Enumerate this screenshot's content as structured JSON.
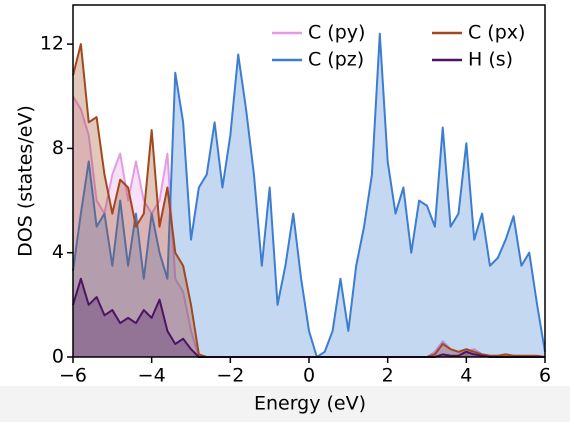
{
  "chart_data": {
    "type": "line",
    "xlabel": "Energy (eV)",
    "ylabel": "DOS (states/eV)",
    "x": [
      -6,
      -5.8,
      -5.6,
      -5.4,
      -5.2,
      -5,
      -4.8,
      -4.6,
      -4.4,
      -4.2,
      -4,
      -3.8,
      -3.6,
      -3.4,
      -3.2,
      -3,
      -2.8,
      -2.6,
      -2.4,
      -2.2,
      -2,
      -1.8,
      -1.6,
      -1.4,
      -1.2,
      -1,
      -0.8,
      -0.6,
      -0.4,
      -0.2,
      0,
      0.2,
      0.4,
      0.6,
      0.8,
      1,
      1.2,
      1.4,
      1.6,
      1.8,
      2,
      2.2,
      2.4,
      2.6,
      2.8,
      3,
      3.2,
      3.4,
      3.6,
      3.8,
      4,
      4.2,
      4.4,
      4.6,
      4.8,
      5,
      5.2,
      5.4,
      5.6,
      5.8,
      6
    ],
    "series": [
      {
        "name": "C (py)",
        "color": "#e39be6",
        "values": [
          10,
          9.5,
          8.5,
          6.0,
          5.5,
          7.0,
          7.8,
          6.0,
          7.5,
          6.0,
          5.5,
          6.0,
          7.8,
          3.0,
          2.5,
          1.0,
          0,
          0,
          0,
          0,
          0,
          0,
          0,
          0,
          0,
          0,
          0,
          0,
          0,
          0,
          0,
          0,
          0,
          0,
          0,
          0,
          0,
          0,
          0,
          0,
          0,
          0,
          0,
          0,
          0,
          0,
          0.2,
          0.6,
          0.3,
          0.2,
          0.2,
          0.3,
          0.1,
          0.05,
          0.05,
          0.05,
          0.05,
          0.05,
          0,
          0,
          0
        ]
      },
      {
        "name": "C (pz)",
        "color": "#3c7dd2",
        "values": [
          3.3,
          5.5,
          7.5,
          5.0,
          5.5,
          3.5,
          6.0,
          3.5,
          5.5,
          3.0,
          5.5,
          4.0,
          3.0,
          10.9,
          9.0,
          4.5,
          6.5,
          7.0,
          9.0,
          6.5,
          8.5,
          11.6,
          9.5,
          7.0,
          3.5,
          6.5,
          2.0,
          3.5,
          5.5,
          3.0,
          1.0,
          0,
          0.2,
          1.0,
          3.0,
          1.0,
          3.5,
          5.0,
          7.0,
          12.4,
          7.5,
          5.5,
          6.5,
          4.0,
          6.0,
          5.8,
          5.0,
          8.8,
          5.0,
          5.5,
          8.2,
          4.5,
          5.5,
          3.5,
          3.8,
          4.5,
          5.4,
          3.5,
          4.0,
          2.0,
          0.2
        ]
      },
      {
        "name": "C (px)",
        "color": "#a0481e",
        "values": [
          10.8,
          12.0,
          9.0,
          9.2,
          7.0,
          5.5,
          6.8,
          6.5,
          5.0,
          5.5,
          8.7,
          5.0,
          6.5,
          4.0,
          3.5,
          2.0,
          0.1,
          0,
          0,
          0,
          0,
          0,
          0,
          0,
          0,
          0,
          0,
          0,
          0,
          0,
          0,
          0,
          0,
          0,
          0,
          0,
          0,
          0,
          0,
          0,
          0,
          0,
          0,
          0,
          0,
          0,
          0.1,
          0.5,
          0.3,
          0.2,
          0.3,
          0.2,
          0.1,
          0.05,
          0.05,
          0.1,
          0.05,
          0.05,
          0.05,
          0.05,
          0
        ]
      },
      {
        "name": "H (s)",
        "color": "#4d1463",
        "values": [
          2.0,
          3.0,
          2.0,
          2.3,
          1.6,
          1.8,
          1.3,
          1.5,
          1.3,
          1.8,
          1.5,
          2.2,
          1.0,
          0.5,
          0.7,
          0.3,
          0,
          0,
          0,
          0,
          0,
          0,
          0,
          0,
          0,
          0,
          0,
          0,
          0,
          0,
          0,
          0,
          0,
          0,
          0,
          0,
          0,
          0,
          0,
          0,
          0,
          0,
          0,
          0,
          0,
          0,
          0,
          0.1,
          0.05,
          0.05,
          0.2,
          0.1,
          0.05,
          0,
          0,
          0,
          0,
          0,
          0,
          0,
          0
        ]
      }
    ],
    "xlim": [
      -6,
      6
    ],
    "xticks": [
      {
        "value": -6,
        "label": "−6"
      },
      {
        "value": -4,
        "label": "−4"
      },
      {
        "value": -2,
        "label": "−2"
      },
      0,
      2,
      4,
      6
    ],
    "ylim": [
      0,
      13.5
    ],
    "yticks": [
      0,
      4,
      8,
      12
    ],
    "fill": true,
    "legend": "upper right"
  }
}
